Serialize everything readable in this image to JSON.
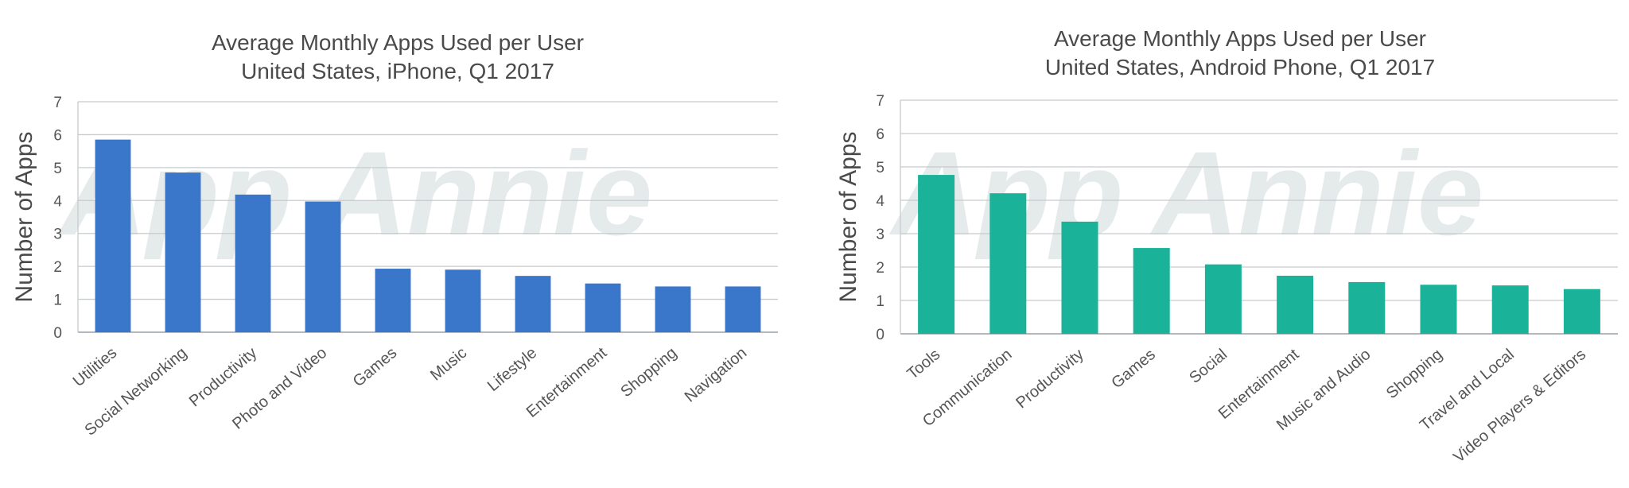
{
  "watermark": "App Annie",
  "chart_data": [
    {
      "type": "bar",
      "title": [
        "Average Monthly Apps Used per User",
        "United States, iPhone, Q1 2017"
      ],
      "xlabel": "",
      "ylabel": "Number of Apps",
      "ylim": [
        0,
        7
      ],
      "yticks": [
        "0",
        "1",
        "2",
        "3",
        "4",
        "5",
        "6",
        "7"
      ],
      "grid": true,
      "color": "#3a76c9",
      "categories": [
        "Utilities",
        "Social Networking",
        "Productivity",
        "Photo and Video",
        "Games",
        "Music",
        "Lifestyle",
        "Entertainment",
        "Shopping",
        "Navigation"
      ],
      "values": [
        5.85,
        4.85,
        4.18,
        3.97,
        1.93,
        1.9,
        1.71,
        1.48,
        1.39,
        1.39
      ]
    },
    {
      "type": "bar",
      "title": [
        "Average Monthly Apps Used per User",
        "United States, Android Phone, Q1 2017"
      ],
      "xlabel": "",
      "ylabel": "Number of Apps",
      "ylim": [
        0,
        7
      ],
      "yticks": [
        "0",
        "1",
        "2",
        "3",
        "4",
        "5",
        "6",
        "7"
      ],
      "grid": true,
      "color": "#1ab39a",
      "categories": [
        "Tools",
        "Communication",
        "Productivity",
        "Games",
        "Social",
        "Entertainment",
        "Music and Audio",
        "Shopping",
        "Travel and Local",
        "Video Players & Editors"
      ],
      "values": [
        4.76,
        4.21,
        3.36,
        2.57,
        2.08,
        1.74,
        1.55,
        1.47,
        1.45,
        1.34
      ]
    }
  ]
}
